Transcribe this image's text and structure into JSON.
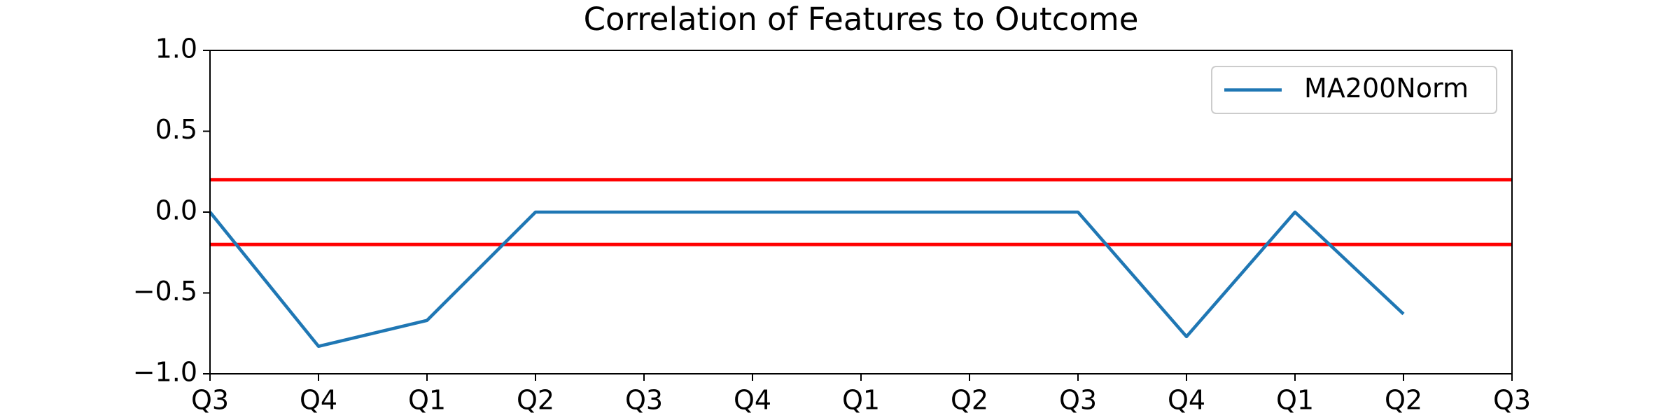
{
  "chart_data": {
    "type": "line",
    "title": "Correlation of Features to Outcome",
    "categories": [
      "Q3",
      "Q4",
      "Q1",
      "Q2",
      "Q3",
      "Q4",
      "Q1",
      "Q2",
      "Q3",
      "Q4",
      "Q1",
      "Q2",
      "Q3"
    ],
    "series": [
      {
        "name": "MA200Norm",
        "color": "#1f77b4",
        "values": [
          0,
          -0.83,
          -0.67,
          0,
          0,
          0,
          0,
          0,
          0,
          -0.77,
          0,
          -0.63,
          null
        ]
      }
    ],
    "hlines": [
      0.2,
      -0.2
    ],
    "hline_color": "#ff0000",
    "ylim": [
      -1,
      1
    ],
    "yticks": [
      {
        "value": -1,
        "label": "−1.0"
      },
      {
        "value": -0.5,
        "label": "−0.5"
      },
      {
        "value": 0,
        "label": "0.0"
      },
      {
        "value": 0.5,
        "label": "0.5"
      },
      {
        "value": 1,
        "label": "1.0"
      }
    ],
    "legend": "upper right",
    "grid": false
  }
}
